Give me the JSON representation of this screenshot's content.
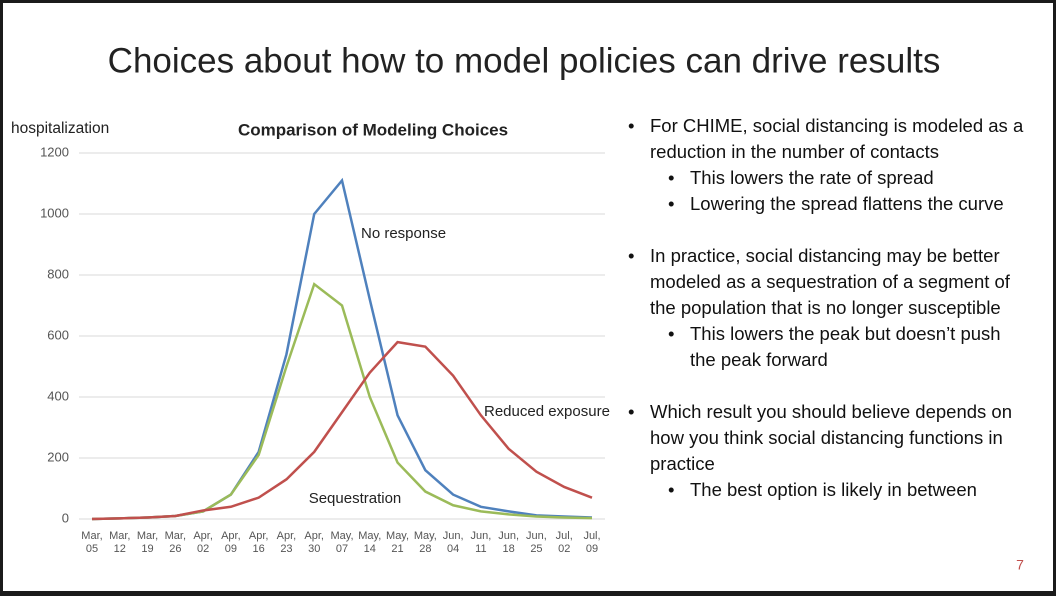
{
  "slide_title": "Choices about how to model policies can drive results",
  "chart_data": {
    "type": "line",
    "title": "Comparison of Modeling Choices",
    "ylabel": "hospitalization",
    "categories": [
      "Mar, 05",
      "Mar, 12",
      "Mar, 19",
      "Mar, 26",
      "Apr, 02",
      "Apr, 09",
      "Apr, 16",
      "Apr, 23",
      "Apr, 30",
      "May, 07",
      "May, 14",
      "May, 21",
      "May, 28",
      "Jun, 04",
      "Jun, 11",
      "Jun, 18",
      "Jun, 25",
      "Jul, 02",
      "Jul, 09"
    ],
    "series": [
      {
        "name": "No response",
        "color": "#4f81bd",
        "values": [
          0,
          2,
          5,
          10,
          25,
          80,
          220,
          540,
          1000,
          1110,
          720,
          340,
          160,
          80,
          40,
          25,
          12,
          8,
          5
        ]
      },
      {
        "name": "Sequestration",
        "color": "#9bbb59",
        "values": [
          0,
          2,
          5,
          10,
          25,
          80,
          210,
          500,
          770,
          700,
          400,
          185,
          90,
          45,
          25,
          15,
          8,
          5,
          3
        ]
      },
      {
        "name": "Reduced exposure",
        "color": "#c0504d",
        "values": [
          0,
          2,
          5,
          10,
          28,
          40,
          70,
          130,
          220,
          350,
          480,
          580,
          565,
          470,
          340,
          230,
          155,
          105,
          70
        ]
      }
    ],
    "ylim": [
      0,
      1200
    ],
    "yticks": [
      0,
      200,
      400,
      600,
      800,
      1000,
      1200
    ],
    "grid": true
  },
  "bullets": [
    {
      "text": "For CHIME, social distancing is modeled as a reduction in the number of contacts",
      "sub": [
        "This lowers the rate of spread",
        "Lowering the spread flattens the curve"
      ]
    },
    {
      "text": "In practice, social distancing may be better modeled as a sequestration of a segment of the population that is no longer susceptible",
      "sub": [
        "This lowers the peak but doesn’t push the peak forward"
      ]
    },
    {
      "text": "Which result you should believe depends on how you think social distancing functions in practice",
      "sub": [
        "The best option is likely in between"
      ]
    }
  ],
  "page_number": "7"
}
